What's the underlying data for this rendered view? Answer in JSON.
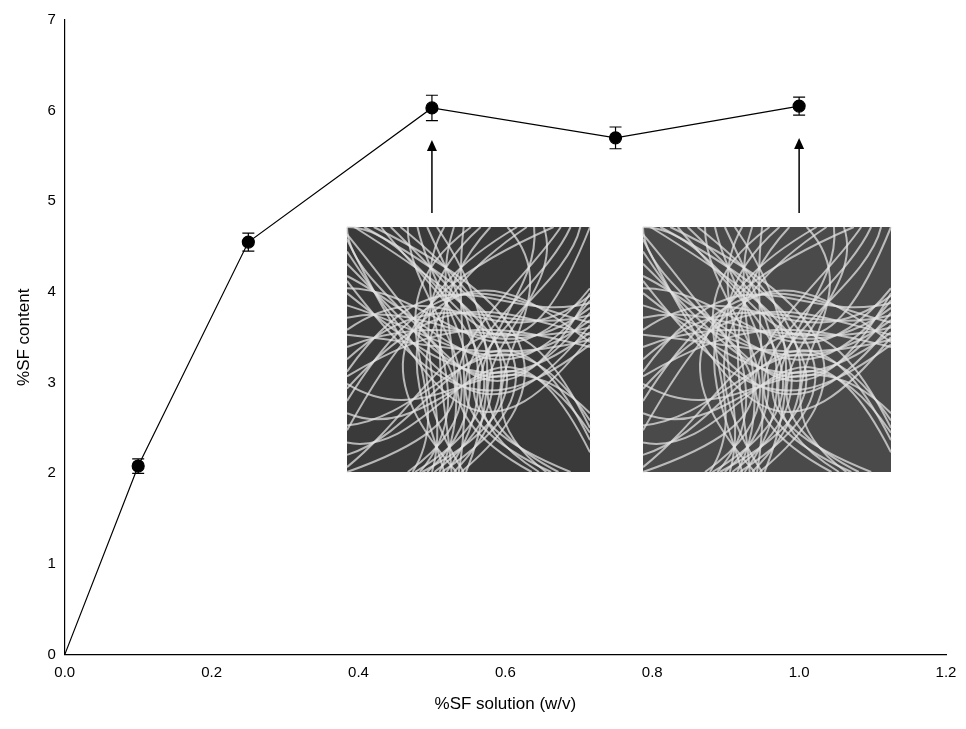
{
  "chart_data": {
    "type": "line",
    "x_label": "%SF solution (w/v)",
    "y_label": "%SF content",
    "x": [
      0,
      0.1,
      0.25,
      0.5,
      0.75,
      1.0
    ],
    "series": [
      {
        "name": "%SF content",
        "color": "#000000",
        "marker": "circle",
        "line_style": "solid",
        "values": [
          0,
          2.08,
          4.55,
          6.03,
          5.7,
          6.05
        ],
        "errors": [
          null,
          0.08,
          0.1,
          0.14,
          0.12,
          0.1
        ]
      }
    ],
    "xlim": [
      0,
      1.2
    ],
    "xticks": [
      {
        "value": 0,
        "label": "0.0"
      },
      {
        "value": 0.2,
        "label": "0.2"
      },
      {
        "value": 0.4,
        "label": "0.4"
      },
      {
        "value": 0.6,
        "label": "0.6"
      },
      {
        "value": 0.8,
        "label": "0.8"
      },
      {
        "value": 1.0,
        "label": "1.0"
      },
      {
        "value": 1.2,
        "label": "1.2"
      }
    ],
    "ylim": [
      0,
      7
    ],
    "yticks": [
      0,
      1,
      2,
      3,
      4,
      5,
      6,
      7
    ],
    "grid": false
  }
}
